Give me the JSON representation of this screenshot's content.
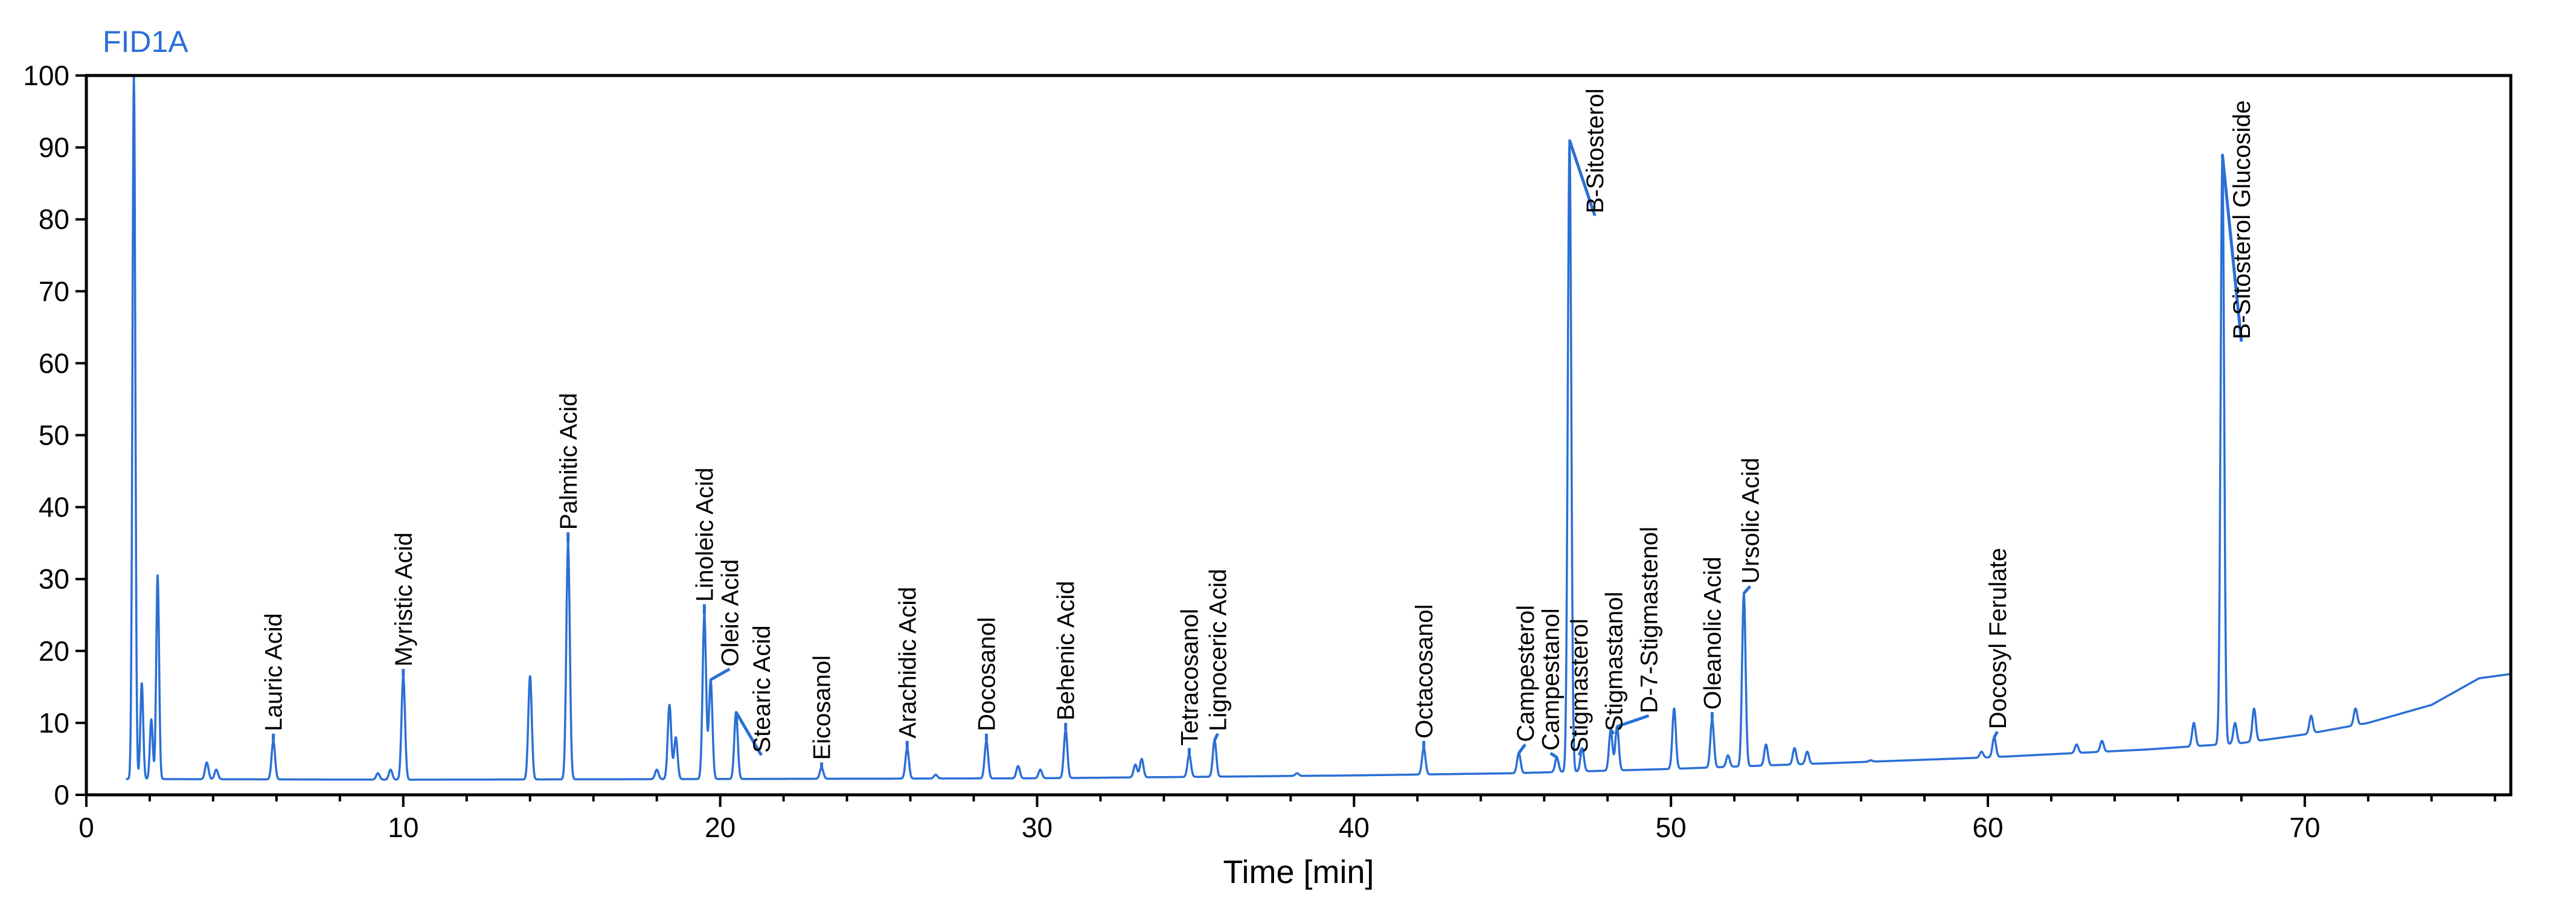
{
  "chart_data": {
    "type": "line",
    "title": "FID1A",
    "xlabel": "Time [min]",
    "ylabel": "",
    "xlim": [
      0,
      76.5
    ],
    "ylim": [
      0,
      100
    ],
    "xticks": [
      0,
      10,
      20,
      30,
      40,
      50,
      60,
      70
    ],
    "yticks": [
      0,
      10,
      20,
      30,
      40,
      50,
      60,
      70,
      80,
      90,
      100
    ],
    "grid": false,
    "colors": {
      "trace": "#2a6fd6",
      "title": "#2a6fd6",
      "axis": "#000000"
    },
    "baseline": [
      [
        0,
        2.2
      ],
      [
        1.3,
        2.2
      ],
      [
        10,
        2.1
      ],
      [
        20,
        2.2
      ],
      [
        30,
        2.3
      ],
      [
        40,
        2.7
      ],
      [
        45,
        3.0
      ],
      [
        50,
        3.6
      ],
      [
        55,
        4.4
      ],
      [
        60,
        5.2
      ],
      [
        65,
        6.3
      ],
      [
        68,
        7.2
      ],
      [
        70,
        8.4
      ],
      [
        72,
        10.0
      ],
      [
        74,
        12.5
      ],
      [
        75.5,
        16.2
      ],
      [
        76.5,
        16.8
      ]
    ],
    "peaks": [
      {
        "t": 5.9,
        "h": 7.5,
        "label": "Lauric Acid"
      },
      {
        "t": 10.0,
        "h": 16.5,
        "label": "Myristic Acid"
      },
      {
        "t": 15.2,
        "h": 35.0,
        "label": "Palmitic Acid"
      },
      {
        "t": 19.5,
        "h": 25.0,
        "label": "Linoleic Acid"
      },
      {
        "t": 19.7,
        "h": 16.0,
        "label": "Oleic Acid"
      },
      {
        "t": 20.5,
        "h": 11.5,
        "label": "Stearic Acid"
      },
      {
        "t": 23.2,
        "h": 3.8,
        "label": "Eicosanol"
      },
      {
        "t": 25.9,
        "h": 6.5,
        "label": "Arachidic Acid"
      },
      {
        "t": 28.4,
        "h": 7.5,
        "label": "Docosanol"
      },
      {
        "t": 30.9,
        "h": 9.0,
        "label": "Behenic Acid"
      },
      {
        "t": 34.8,
        "h": 5.6,
        "label": "Tetracosanol"
      },
      {
        "t": 35.6,
        "h": 7.6,
        "label": "Lignoceric Acid"
      },
      {
        "t": 42.2,
        "h": 6.5,
        "label": "Octacosanol"
      },
      {
        "t": 45.2,
        "h": 5.8,
        "label": "Campesterol"
      },
      {
        "t": 46.4,
        "h": 5.2,
        "label": "Campestanol"
      },
      {
        "t": 46.8,
        "h": 91.0,
        "label": "B-Sitosterol"
      },
      {
        "t": 47.2,
        "h": 6.5,
        "label": "Stigmasterol"
      },
      {
        "t": 48.1,
        "h": 9.0,
        "label": "Stigmastanol"
      },
      {
        "t": 48.3,
        "h": 9.5,
        "label": "D-7-Stigmastenol"
      },
      {
        "t": 51.3,
        "h": 10.5,
        "label": "Oleanolic Acid"
      },
      {
        "t": 52.3,
        "h": 28.0,
        "label": "Ursolic Acid"
      },
      {
        "t": 60.2,
        "h": 8.0,
        "label": "Docosyl Ferulate"
      },
      {
        "t": 67.4,
        "h": 89.0,
        "label": "B-Sitosterol Glucoside"
      },
      {
        "t": 1.5,
        "h": 100.0,
        "label": ""
      },
      {
        "t": 1.75,
        "h": 15.5,
        "label": ""
      },
      {
        "t": 2.05,
        "h": 10.5,
        "label": ""
      },
      {
        "t": 2.25,
        "h": 30.5,
        "label": ""
      },
      {
        "t": 3.8,
        "h": 4.5,
        "label": ""
      },
      {
        "t": 4.1,
        "h": 3.5,
        "label": ""
      },
      {
        "t": 9.2,
        "h": 3.0,
        "label": ""
      },
      {
        "t": 9.6,
        "h": 3.5,
        "label": ""
      },
      {
        "t": 14.0,
        "h": 16.5,
        "label": ""
      },
      {
        "t": 18.0,
        "h": 3.5,
        "label": ""
      },
      {
        "t": 18.4,
        "h": 12.5,
        "label": ""
      },
      {
        "t": 18.6,
        "h": 8.0,
        "label": ""
      },
      {
        "t": 26.8,
        "h": 2.8,
        "label": ""
      },
      {
        "t": 29.4,
        "h": 4.0,
        "label": ""
      },
      {
        "t": 30.1,
        "h": 3.5,
        "label": ""
      },
      {
        "t": 33.1,
        "h": 4.2,
        "label": ""
      },
      {
        "t": 33.3,
        "h": 5.0,
        "label": ""
      },
      {
        "t": 38.2,
        "h": 3.0,
        "label": ""
      },
      {
        "t": 50.1,
        "h": 12.0,
        "label": ""
      },
      {
        "t": 51.8,
        "h": 5.5,
        "label": ""
      },
      {
        "t": 53.0,
        "h": 7.0,
        "label": ""
      },
      {
        "t": 53.9,
        "h": 6.5,
        "label": ""
      },
      {
        "t": 54.3,
        "h": 6.0,
        "label": ""
      },
      {
        "t": 56.3,
        "h": 4.8,
        "label": ""
      },
      {
        "t": 59.8,
        "h": 6.0,
        "label": ""
      },
      {
        "t": 62.8,
        "h": 7.0,
        "label": ""
      },
      {
        "t": 63.6,
        "h": 7.5,
        "label": ""
      },
      {
        "t": 66.5,
        "h": 10.0,
        "label": ""
      },
      {
        "t": 67.8,
        "h": 10.0,
        "label": ""
      },
      {
        "t": 68.4,
        "h": 12.0,
        "label": ""
      },
      {
        "t": 70.2,
        "h": 11.0,
        "label": ""
      },
      {
        "t": 71.6,
        "h": 12.0,
        "label": ""
      }
    ]
  }
}
